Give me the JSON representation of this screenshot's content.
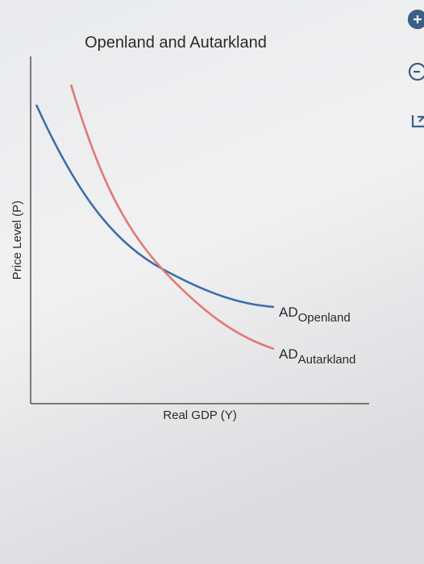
{
  "title": "Openland and Autarkland",
  "y_axis_label": "Price Level (P)",
  "x_axis_label": "Real GDP (Y)",
  "curves": [
    {
      "label": "AD",
      "subscript": "Openland"
    },
    {
      "label": "AD",
      "subscript": "Autarkland"
    }
  ]
}
